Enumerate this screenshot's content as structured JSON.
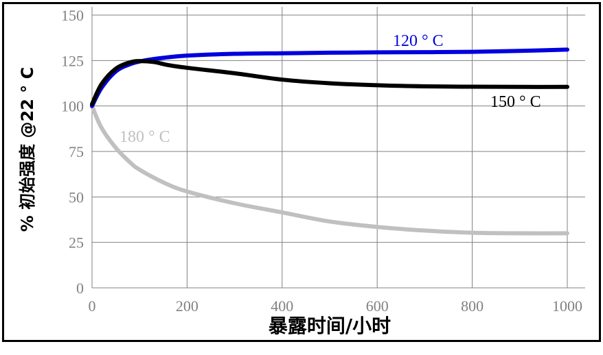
{
  "chart_data": {
    "type": "line",
    "title": "",
    "xlabel": "暴露时间/小时",
    "ylabel": "% 初始强度 @22 ° C",
    "xlim": [
      0,
      1000
    ],
    "ylim": [
      0,
      150
    ],
    "x_ticks": [
      0,
      200,
      400,
      600,
      800,
      1000
    ],
    "y_ticks": [
      0,
      25,
      50,
      75,
      100,
      125,
      150
    ],
    "grid": true,
    "legend": "none (inline series labels)",
    "series": [
      {
        "name": "120 ° C",
        "color": "#0000dd",
        "points": [
          [
            0,
            100
          ],
          [
            20,
            110
          ],
          [
            50,
            119
          ],
          [
            80,
            123
          ],
          [
            110,
            125
          ],
          [
            150,
            126.5
          ],
          [
            200,
            127.7
          ],
          [
            300,
            128.7
          ],
          [
            400,
            129
          ],
          [
            500,
            129.3
          ],
          [
            600,
            129.5
          ],
          [
            700,
            129.6
          ],
          [
            800,
            129.8
          ],
          [
            900,
            130.3
          ],
          [
            1000,
            131
          ]
        ]
      },
      {
        "name": "150 ° C",
        "color": "#000000",
        "points": [
          [
            0,
            101
          ],
          [
            20,
            112
          ],
          [
            50,
            120.5
          ],
          [
            80,
            124
          ],
          [
            100,
            124.7
          ],
          [
            130,
            124.2
          ],
          [
            160,
            122.5
          ],
          [
            200,
            121
          ],
          [
            300,
            118
          ],
          [
            400,
            114.5
          ],
          [
            500,
            112.5
          ],
          [
            600,
            111.4
          ],
          [
            700,
            110.8
          ],
          [
            800,
            110.6
          ],
          [
            900,
            110.5
          ],
          [
            1000,
            110.5
          ]
        ]
      },
      {
        "name": "180 ° C",
        "color": "#c0c0c0",
        "points": [
          [
            0,
            100
          ],
          [
            20,
            88
          ],
          [
            50,
            77
          ],
          [
            80,
            69
          ],
          [
            100,
            65
          ],
          [
            150,
            58
          ],
          [
            200,
            53
          ],
          [
            300,
            46.5
          ],
          [
            400,
            41.5
          ],
          [
            500,
            36.5
          ],
          [
            600,
            33.5
          ],
          [
            700,
            31.5
          ],
          [
            800,
            30.3
          ],
          [
            900,
            30
          ],
          [
            1000,
            30
          ]
        ]
      }
    ],
    "labels": {
      "s120": "120 ° C",
      "s150": "150 ° C",
      "s180": "180 ° C"
    },
    "label_colors": {
      "s120": "#0000dd",
      "s150": "#000000",
      "s180": "#c0c0c0"
    }
  }
}
